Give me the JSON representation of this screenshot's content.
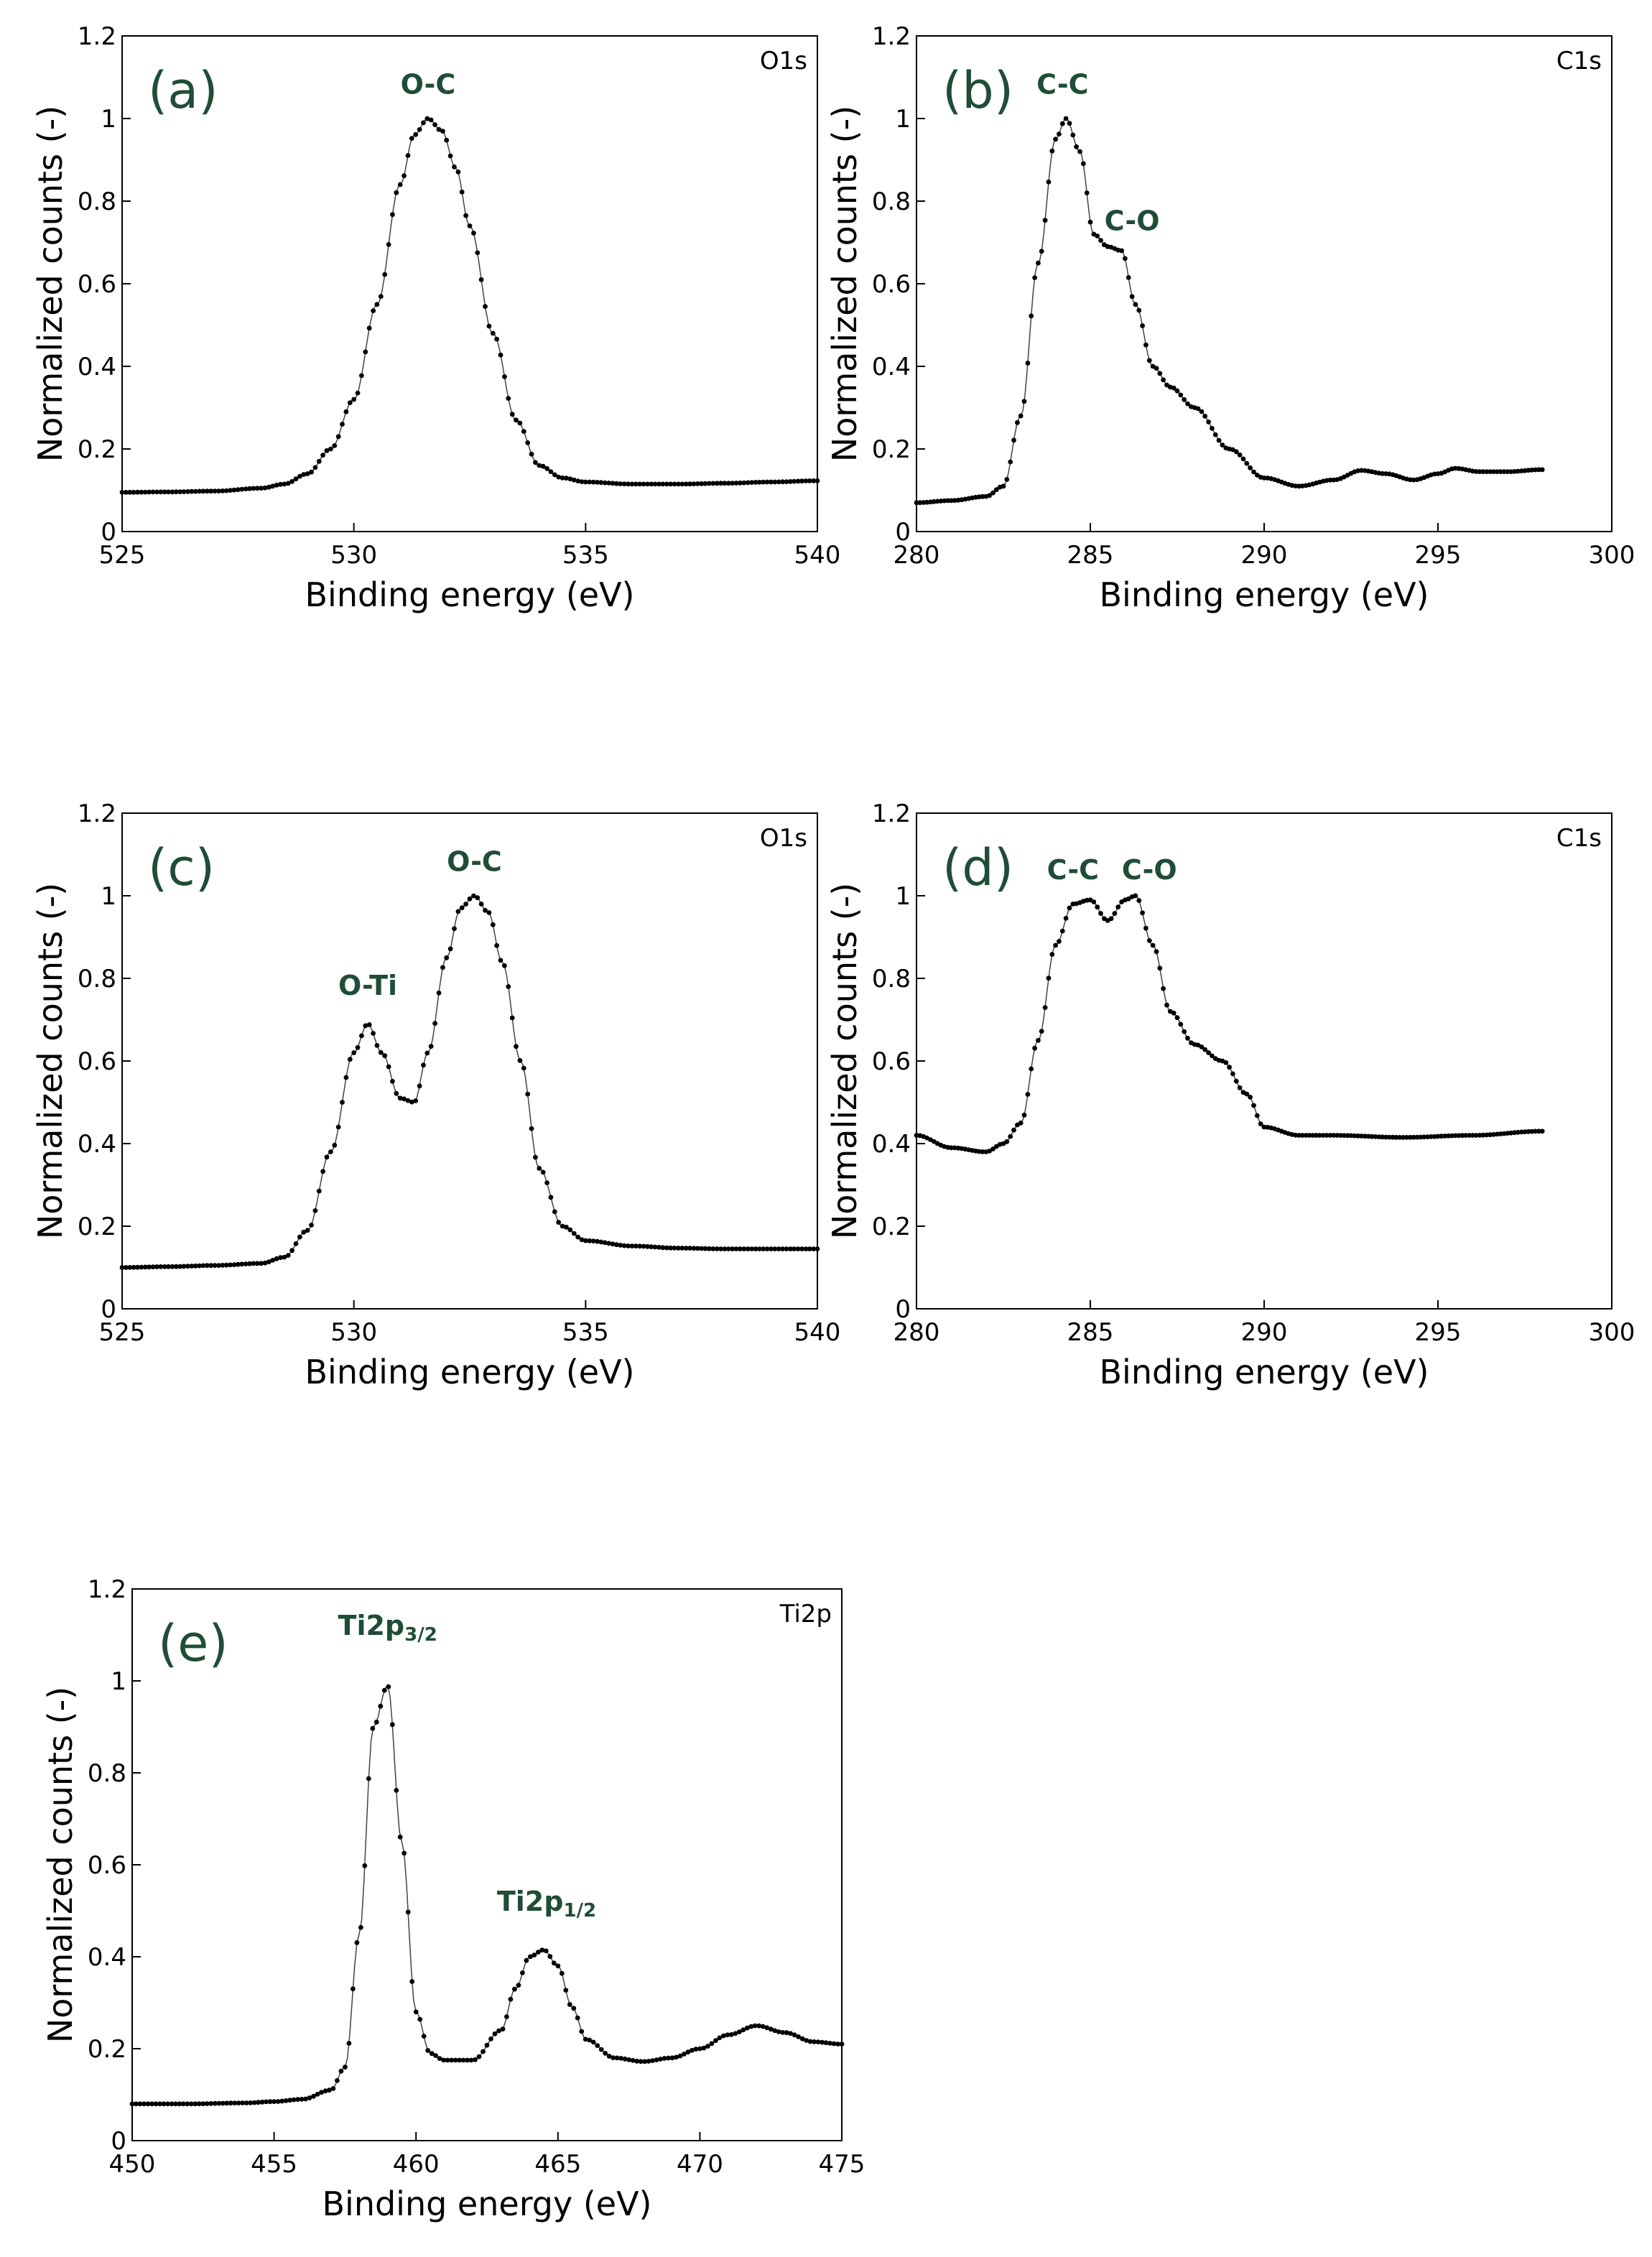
{
  "chart_data": [
    {
      "type": "scatter",
      "panel_label": "(a)",
      "spectrum": "O1s",
      "xlabel": "Binding energy (eV)",
      "ylabel": "Normalized counts (-)",
      "xlim": [
        525,
        540
      ],
      "ylim": [
        0,
        1.2
      ],
      "x_ticks": [
        "525",
        "530",
        "535",
        "540"
      ],
      "y_ticks": [
        "0",
        "0.2",
        "0.4",
        "0.6",
        "0.8",
        "1",
        "1.2"
      ],
      "annotations": [
        {
          "text": "O-C",
          "sub": "",
          "x": 531.6,
          "y": 1.06
        }
      ],
      "series": [
        {
          "x": [
            525,
            526,
            527,
            528,
            528.5,
            529,
            529.5,
            530,
            530.5,
            531,
            531.3,
            531.6,
            531.9,
            532.2,
            532.5,
            533,
            533.5,
            534,
            534.5,
            535,
            536,
            537,
            538,
            539,
            540
          ],
          "y": [
            0.095,
            0.096,
            0.098,
            0.105,
            0.115,
            0.14,
            0.2,
            0.32,
            0.55,
            0.84,
            0.96,
            1.0,
            0.97,
            0.88,
            0.74,
            0.48,
            0.27,
            0.16,
            0.13,
            0.12,
            0.115,
            0.115,
            0.117,
            0.12,
            0.123
          ]
        }
      ]
    },
    {
      "type": "scatter",
      "panel_label": "(b)",
      "spectrum": "C1s",
      "xlabel": "Binding energy (eV)",
      "ylabel": "Normalized counts (-)",
      "xlim": [
        280,
        300
      ],
      "ylim": [
        0,
        1.2
      ],
      "x_ticks": [
        "280",
        "285",
        "290",
        "295",
        "300"
      ],
      "y_ticks": [
        "0",
        "0.2",
        "0.4",
        "0.6",
        "0.8",
        "1",
        "1.2"
      ],
      "annotations": [
        {
          "text": "C-C",
          "sub": "",
          "x": 284.2,
          "y": 1.06
        },
        {
          "text": "C-O",
          "sub": "",
          "x": 286.2,
          "y": 0.73
        }
      ],
      "series": [
        {
          "x": [
            280,
            281,
            282,
            282.5,
            283,
            283.5,
            284,
            284.3,
            284.7,
            285.1,
            285.5,
            285.9,
            286.3,
            286.8,
            287.3,
            288,
            289,
            290,
            291,
            292,
            292.8,
            293.5,
            294.3,
            295,
            295.5,
            296.2,
            297,
            298
          ],
          "y": [
            0.07,
            0.075,
            0.085,
            0.11,
            0.28,
            0.65,
            0.95,
            1.0,
            0.92,
            0.72,
            0.69,
            0.68,
            0.55,
            0.4,
            0.35,
            0.3,
            0.2,
            0.13,
            0.11,
            0.125,
            0.148,
            0.14,
            0.125,
            0.14,
            0.153,
            0.145,
            0.145,
            0.15
          ]
        }
      ]
    },
    {
      "type": "scatter",
      "panel_label": "(c)",
      "spectrum": "O1s",
      "xlabel": "Binding energy (eV)",
      "ylabel": "Normalized counts (-)",
      "xlim": [
        525,
        540
      ],
      "ylim": [
        0,
        1.2
      ],
      "x_ticks": [
        "525",
        "530",
        "535",
        "540"
      ],
      "y_ticks": [
        "0",
        "0.2",
        "0.4",
        "0.6",
        "0.8",
        "1",
        "1.2"
      ],
      "annotations": [
        {
          "text": "O-C",
          "sub": "",
          "x": 532.6,
          "y": 1.06
        },
        {
          "text": "O-Ti",
          "sub": "",
          "x": 530.3,
          "y": 0.76
        }
      ],
      "series": [
        {
          "x": [
            525,
            526,
            527,
            528,
            528.5,
            529,
            529.5,
            530,
            530.3,
            530.6,
            531,
            531.3,
            531.6,
            532,
            532.3,
            532.6,
            532.9,
            533.2,
            533.6,
            534,
            534.5,
            535,
            536,
            537,
            538,
            539,
            540
          ],
          "y": [
            0.1,
            0.102,
            0.105,
            0.11,
            0.125,
            0.19,
            0.38,
            0.62,
            0.69,
            0.62,
            0.51,
            0.5,
            0.62,
            0.85,
            0.97,
            1.0,
            0.96,
            0.84,
            0.6,
            0.34,
            0.2,
            0.165,
            0.152,
            0.147,
            0.145,
            0.145,
            0.145
          ]
        }
      ]
    },
    {
      "type": "scatter",
      "panel_label": "(d)",
      "spectrum": "C1s",
      "xlabel": "Binding energy (eV)",
      "ylabel": "Normalized counts (-)",
      "xlim": [
        280,
        300
      ],
      "ylim": [
        0,
        1.2
      ],
      "x_ticks": [
        "280",
        "285",
        "290",
        "295",
        "300"
      ],
      "y_ticks": [
        "0",
        "0.2",
        "0.4",
        "0.6",
        "0.8",
        "1",
        "1.2"
      ],
      "annotations": [
        {
          "text": "C-C",
          "sub": "",
          "x": 284.5,
          "y": 1.04
        },
        {
          "text": "C-O",
          "sub": "",
          "x": 286.7,
          "y": 1.04
        }
      ],
      "series": [
        {
          "x": [
            280,
            281,
            282,
            282.5,
            283,
            283.5,
            284,
            284.5,
            285,
            285.5,
            286,
            286.3,
            286.8,
            287.3,
            288,
            288.8,
            289.5,
            290,
            291,
            292,
            294,
            296,
            298
          ],
          "y": [
            0.42,
            0.39,
            0.38,
            0.4,
            0.45,
            0.65,
            0.88,
            0.98,
            0.99,
            0.94,
            0.99,
            1.0,
            0.88,
            0.72,
            0.64,
            0.6,
            0.52,
            0.44,
            0.42,
            0.42,
            0.415,
            0.42,
            0.43
          ]
        }
      ]
    },
    {
      "type": "scatter",
      "panel_label": "(e)",
      "spectrum": "Ti2p",
      "xlabel": "Binding energy (eV)",
      "ylabel": "Normalized counts (-)",
      "xlim": [
        450,
        475
      ],
      "ylim": [
        0,
        1.2
      ],
      "x_ticks": [
        "450",
        "455",
        "460",
        "465",
        "470",
        "475"
      ],
      "y_ticks": [
        "0",
        "0.2",
        "0.4",
        "0.6",
        "0.8",
        "1",
        "1.2"
      ],
      "annotations": [
        {
          "text": "Ti2p",
          "sub": "3/2",
          "x": 459.0,
          "y": 1.1
        },
        {
          "text": "Ti2p",
          "sub": "1/2",
          "x": 464.6,
          "y": 0.5
        }
      ],
      "series": [
        {
          "x": [
            450,
            452,
            454,
            455,
            456,
            457,
            457.5,
            458,
            458.5,
            459,
            459.5,
            460,
            460.5,
            461,
            462,
            463,
            463.5,
            464,
            464.5,
            465,
            465.5,
            466,
            467,
            468,
            469,
            470,
            471,
            472,
            473,
            474,
            475
          ],
          "y": [
            0.08,
            0.08,
            0.082,
            0.085,
            0.09,
            0.11,
            0.16,
            0.45,
            0.9,
            0.99,
            0.65,
            0.28,
            0.19,
            0.175,
            0.175,
            0.24,
            0.33,
            0.4,
            0.415,
            0.38,
            0.29,
            0.22,
            0.18,
            0.172,
            0.18,
            0.2,
            0.23,
            0.25,
            0.235,
            0.215,
            0.21
          ]
        }
      ]
    }
  ]
}
